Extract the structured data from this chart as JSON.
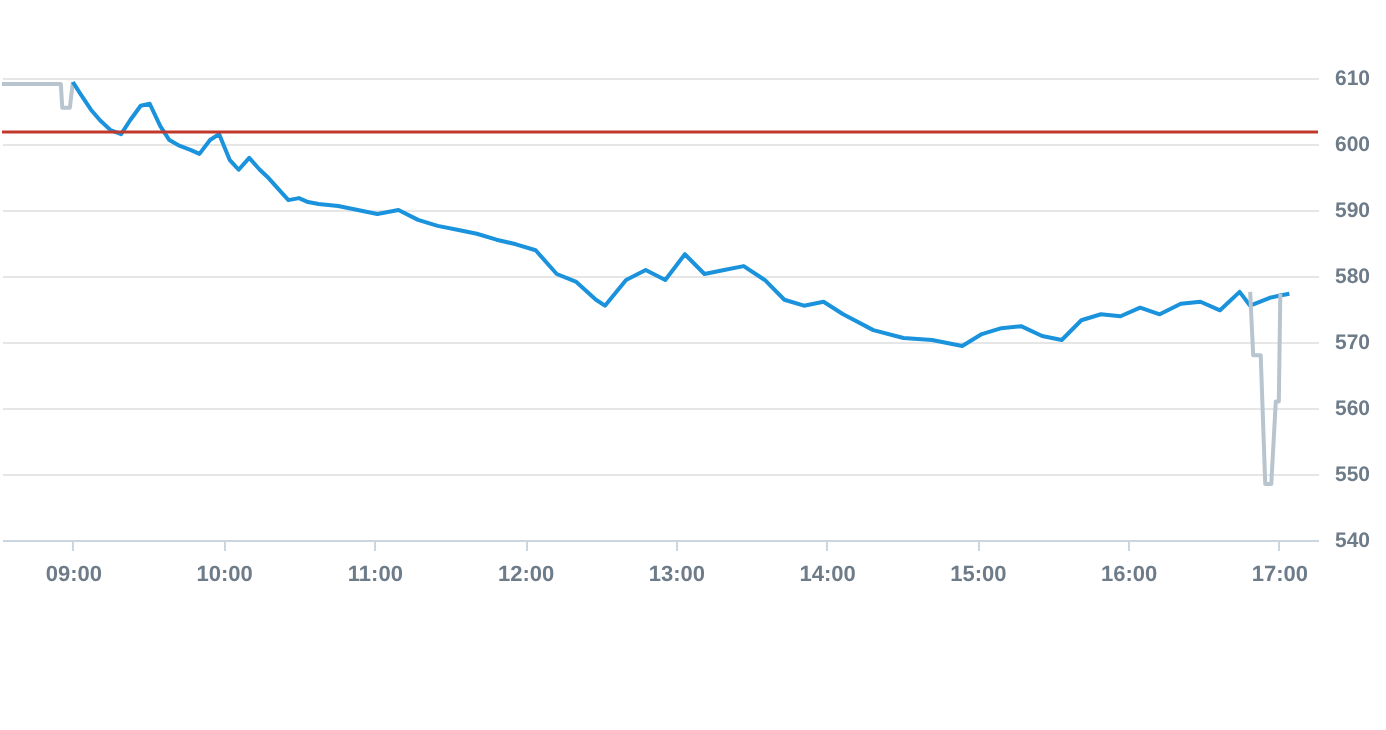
{
  "chart_data": {
    "type": "line",
    "xlim": [
      8.53,
      17.26
    ],
    "ylim": [
      540,
      610
    ],
    "xticks": [
      {
        "value": 9,
        "label": "09:00"
      },
      {
        "value": 10,
        "label": "10:00"
      },
      {
        "value": 11,
        "label": "11:00"
      },
      {
        "value": 12,
        "label": "12:00"
      },
      {
        "value": 13,
        "label": "13:00"
      },
      {
        "value": 14,
        "label": "14:00"
      },
      {
        "value": 15,
        "label": "15:00"
      },
      {
        "value": 16,
        "label": "16:00"
      },
      {
        "value": 17,
        "label": "17:00"
      }
    ],
    "yticks": [
      540,
      550,
      560,
      570,
      580,
      590,
      600,
      610
    ],
    "grid": "y",
    "marker": "none",
    "line_style": "solid",
    "ref_lines": [
      {
        "axis": "y",
        "value": 601.8,
        "color": "#c0392b"
      }
    ],
    "series": [
      {
        "color": "#b8c4ce",
        "x": [
          8.53,
          8.92,
          8.93,
          8.98,
          9.0
        ],
        "values": [
          609.1,
          609.1,
          605.5,
          605.5,
          609.4
        ]
      },
      {
        "color": "#1a93dc",
        "x": [
          9.0,
          9.05,
          9.12,
          9.18,
          9.25,
          9.32,
          9.38,
          9.45,
          9.51,
          9.58,
          9.64,
          9.71,
          9.78,
          9.84,
          9.91,
          9.97,
          10.04,
          10.1,
          10.17,
          10.24,
          10.3,
          10.37,
          10.43,
          10.5,
          10.56,
          10.63,
          10.76,
          10.89,
          11.02,
          11.16,
          11.29,
          11.42,
          11.55,
          11.68,
          11.81,
          11.94,
          12.07,
          12.21,
          12.34,
          12.47,
          12.53,
          12.67,
          12.8,
          12.93,
          13.06,
          13.19,
          13.32,
          13.45,
          13.59,
          13.72,
          13.85,
          13.98,
          14.11,
          14.31,
          14.51,
          14.7,
          14.9,
          15.03,
          15.16,
          15.29,
          15.43,
          15.56,
          15.69,
          15.82,
          15.95,
          16.08,
          16.21,
          16.35,
          16.48,
          16.61,
          16.74,
          16.81,
          16.94,
          17.0,
          17.07
        ],
        "values": [
          609.4,
          607.6,
          605.2,
          603.6,
          602.1,
          601.5,
          603.6,
          605.8,
          606.1,
          602.7,
          600.6,
          599.7,
          599.1,
          598.5,
          600.6,
          601.5,
          597.6,
          596.1,
          597.9,
          596.1,
          594.8,
          593.0,
          591.5,
          591.8,
          591.2,
          590.9,
          590.6,
          590.0,
          589.4,
          590.0,
          588.5,
          587.6,
          587.0,
          586.4,
          585.5,
          584.8,
          583.9,
          580.3,
          579.1,
          576.4,
          575.5,
          579.4,
          580.9,
          579.4,
          583.3,
          580.3,
          580.9,
          581.5,
          579.4,
          576.4,
          575.5,
          576.1,
          574.2,
          571.8,
          570.6,
          570.3,
          569.4,
          571.2,
          572.1,
          572.4,
          570.9,
          570.3,
          573.3,
          574.2,
          573.9,
          575.2,
          574.2,
          575.8,
          576.1,
          574.8,
          577.6,
          575.5,
          576.7,
          577.0,
          577.3
        ]
      },
      {
        "color": "#b8c4ce",
        "x": [
          16.81,
          16.83,
          16.88,
          16.91,
          16.95,
          16.98,
          17.0,
          17.01
        ],
        "values": [
          577.6,
          568.0,
          568.0,
          548.5,
          548.5,
          561.0,
          561.0,
          577.3
        ]
      }
    ]
  }
}
